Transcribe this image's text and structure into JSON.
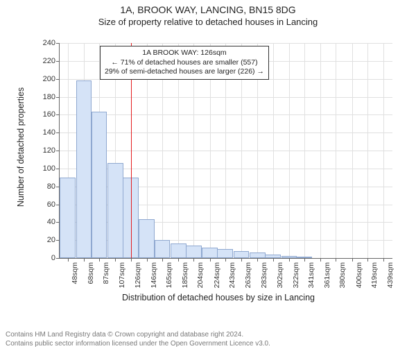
{
  "title_main": "1A, BROOK WAY, LANCING, BN15 8DG",
  "title_sub": "Size of property relative to detached houses in Lancing",
  "ylabel": "Number of detached properties",
  "xlabel": "Distribution of detached houses by size in Lancing",
  "footer_line1": "Contains HM Land Registry data © Crown copyright and database right 2024.",
  "footer_line2": "Contains public sector information licensed under the Open Government Licence v3.0.",
  "annotation": {
    "line1": "1A BROOK WAY: 126sqm",
    "line2": "← 71% of detached houses are smaller (557)",
    "line3": "29% of semi-detached houses are larger (226) →"
  },
  "chart": {
    "type": "histogram",
    "bar_color": "#d5e3f7",
    "bar_border_color": "#8fa8d0",
    "grid_color": "#e0e0e0",
    "refline_color": "#e41a1c",
    "refline_x": 126,
    "xlim": [
      38,
      450
    ],
    "ylim": [
      0,
      240
    ],
    "ytick_step": 20,
    "bar_step_sqm": 19.5,
    "x_ticks": [
      48,
      68,
      87,
      107,
      126,
      146,
      165,
      185,
      204,
      224,
      243,
      263,
      283,
      302,
      322,
      341,
      361,
      380,
      400,
      419,
      439
    ],
    "values": [
      90,
      198,
      163,
      106,
      90,
      43,
      20,
      16,
      14,
      12,
      10,
      8,
      6,
      4,
      2,
      1,
      0,
      0,
      0,
      0,
      0
    ],
    "title_fontsize": 14,
    "label_fontsize": 12.5,
    "tick_fontsize": 11,
    "annotation_fontsize": 10.5
  }
}
